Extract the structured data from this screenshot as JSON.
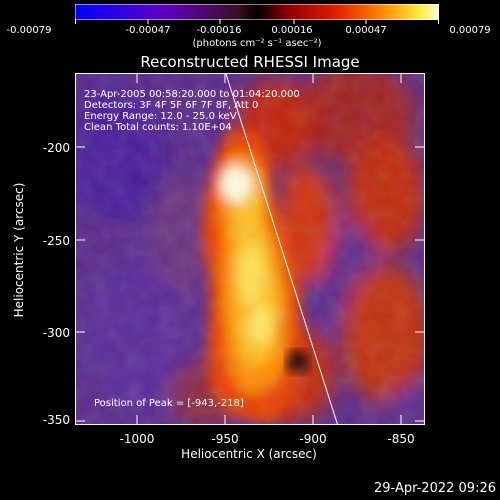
{
  "colorbar": {
    "ticks": [
      "-0.00079",
      "-0.00047",
      "-0.00016",
      "0.00016",
      "0.00047",
      "0.00079"
    ],
    "units": "(photons cm⁻² s⁻¹ asec⁻²)"
  },
  "title": "Reconstructed RHESSI Image",
  "info": {
    "time_range": "23-Apr-2005 00:58:20.000 to 01:04:20.000",
    "detectors": "Detectors: 3F 4F 5F 6F 7F 8F, Att 0",
    "energy": "Energy Range: 12.0 - 25.0 keV",
    "clean": "Clean     Total counts: 1.10E+04",
    "peak": "Position of Peak = [-943,-218]"
  },
  "axes": {
    "xlabel": "Heliocentric X (arcsec)",
    "ylabel": "Heliocentric Y (arcsec)",
    "xticks": [
      "-1000",
      "-950",
      "-900",
      "-850"
    ],
    "yticks": [
      "-200",
      "-250",
      "-300",
      "-350"
    ]
  },
  "timestamp": "29-Apr-2022 09:26"
}
